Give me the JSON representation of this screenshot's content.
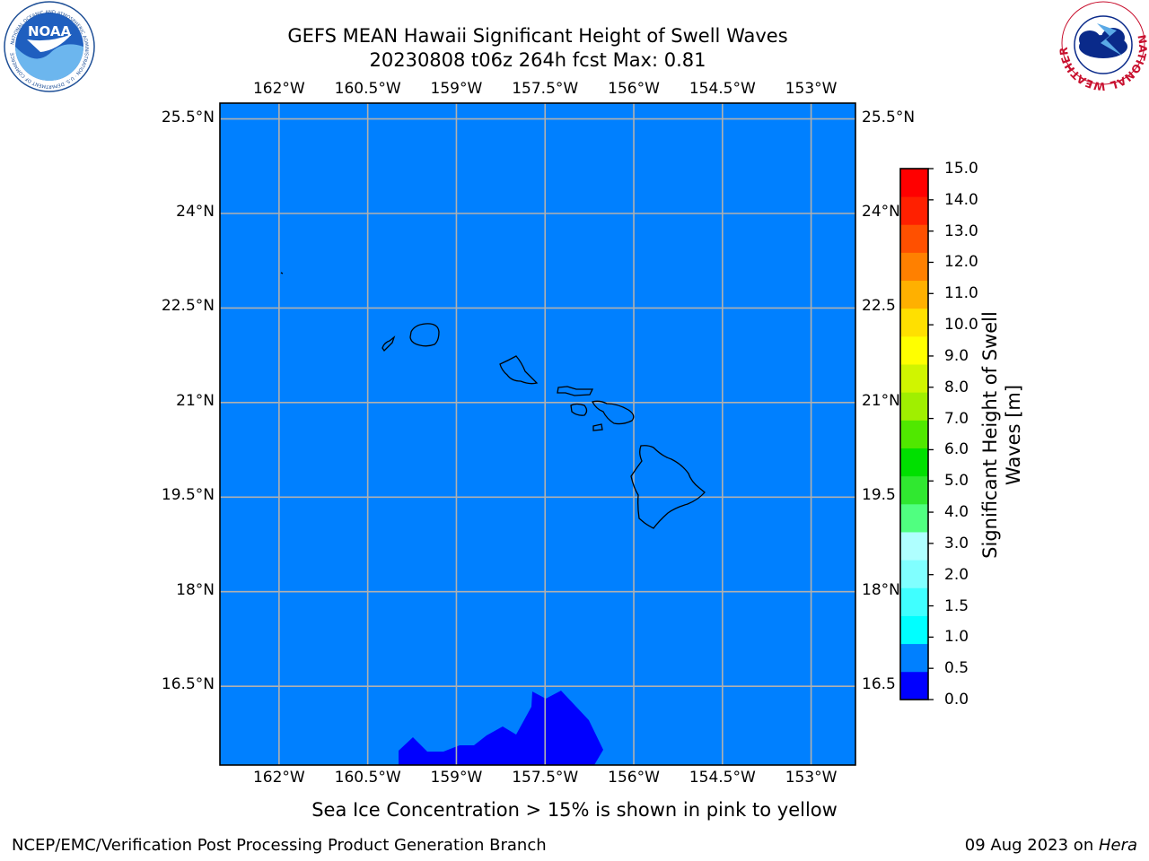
{
  "title_line1": "GEFS MEAN Hawaii Significant Height of Swell Waves",
  "title_line2": "20230808 t06z 264h fcst   Max: 0.81",
  "map": {
    "lon_ticks": [
      "162°W",
      "160.5°W",
      "159°W",
      "157.5°W",
      "156°W",
      "154.5°W",
      "153°W"
    ],
    "lat_ticks": [
      "25.5°N",
      "24°N",
      "22.5°N",
      "21°N",
      "19.5°N",
      "18°N",
      "16.5°N"
    ],
    "right_lat_ticks": [
      "25.5°N",
      "24°N",
      "22.5",
      "21°N",
      "19.5",
      "18°N",
      "16.5"
    ],
    "lon_range": [
      -163,
      -152.25
    ],
    "lat_range": [
      15.25,
      25.75
    ],
    "ocean_color": "#0080ff",
    "low_region_color": "#0000ff",
    "grid_color": "#b0b0b0",
    "coast_color": "#000000"
  },
  "colorbar": {
    "label": "Significant Height of Swell Waves [m]",
    "ticks": [
      "0.0",
      "0.5",
      "1.0",
      "1.5",
      "2.0",
      "3.0",
      "4.0",
      "5.0",
      "6.0",
      "7.0",
      "8.0",
      "9.0",
      "10.0",
      "11.0",
      "12.0",
      "13.0",
      "14.0",
      "15.0"
    ],
    "colors": [
      "#0000ff",
      "#0080ff",
      "#00ffff",
      "#40ffff",
      "#80ffff",
      "#afffff",
      "#50ff80",
      "#30e830",
      "#00e000",
      "#50e800",
      "#a0ef00",
      "#d0f500",
      "#ffff00",
      "#ffe000",
      "#ffb000",
      "#ff8000",
      "#ff5000",
      "#ff2000",
      "#ff0000"
    ]
  },
  "note": "Sea Ice Concentration > 15% is shown in pink to yellow",
  "credit": "NCEP/EMC/Verification Post Processing Product Generation Branch",
  "date": "09 Aug 2023 on ",
  "machine": "Hera",
  "logo_left": {
    "text": "NOAA",
    "ring_text": "NATIONAL OCEANIC AND ATMOSPHERIC ADMINISTRATION · U.S. DEPARTMENT OF COMMERCE"
  },
  "logo_right": {
    "ring_text": "NATIONAL WEATHER SERVICE"
  }
}
